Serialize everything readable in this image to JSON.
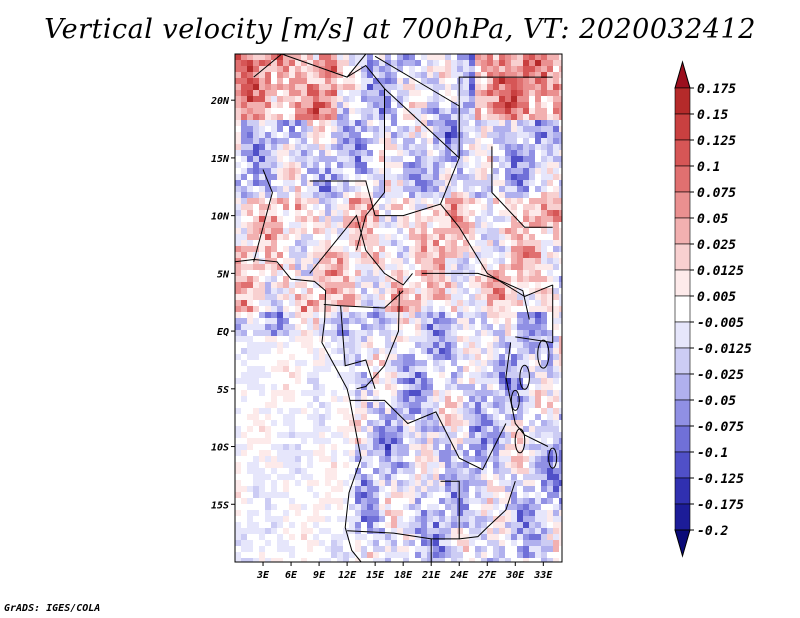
{
  "chart_data": {
    "type": "heatmap",
    "title": "Vertical velocity [m/s] at 700hPa, VT: 2020032412",
    "variable": "Vertical velocity",
    "units": "m/s",
    "level": "700hPa",
    "valid_time": "2020032412",
    "x_axis": {
      "ticks": [
        3,
        6,
        9,
        12,
        15,
        18,
        21,
        24,
        27,
        30,
        33
      ],
      "tick_labels": [
        "3E",
        "6E",
        "9E",
        "12E",
        "15E",
        "18E",
        "21E",
        "24E",
        "27E",
        "30E",
        "33E"
      ],
      "range": [
        0,
        35
      ]
    },
    "y_axis": {
      "ticks": [
        20,
        15,
        10,
        5,
        0,
        -5,
        -10,
        -15
      ],
      "tick_labels": [
        "20N",
        "15N",
        "10N",
        "5N",
        "EQ",
        "5S",
        "10S",
        "15S"
      ],
      "range": [
        -20,
        24
      ]
    },
    "colorbar": {
      "levels": [
        "0.175",
        "0.15",
        "0.125",
        "0.1",
        "0.075",
        "0.05",
        "0.025",
        "0.0125",
        "0.005",
        "-0.005",
        "-0.0125",
        "-0.025",
        "-0.05",
        "-0.075",
        "-0.1",
        "-0.125",
        "-0.175",
        "-0.2"
      ],
      "colors": [
        "#9b0f1e",
        "#b52a2a",
        "#c94040",
        "#d65656",
        "#e07070",
        "#ea9090",
        "#f2b0b0",
        "#f8d0d0",
        "#fdeaea",
        "#ffffff",
        "#e6e6fb",
        "#ccccf4",
        "#b0b0ee",
        "#9090e4",
        "#7070d8",
        "#5050c8",
        "#3030b0",
        "#1c1c98",
        "#0a0a78"
      ]
    }
  },
  "footer": "GrADS: IGES/COLA"
}
